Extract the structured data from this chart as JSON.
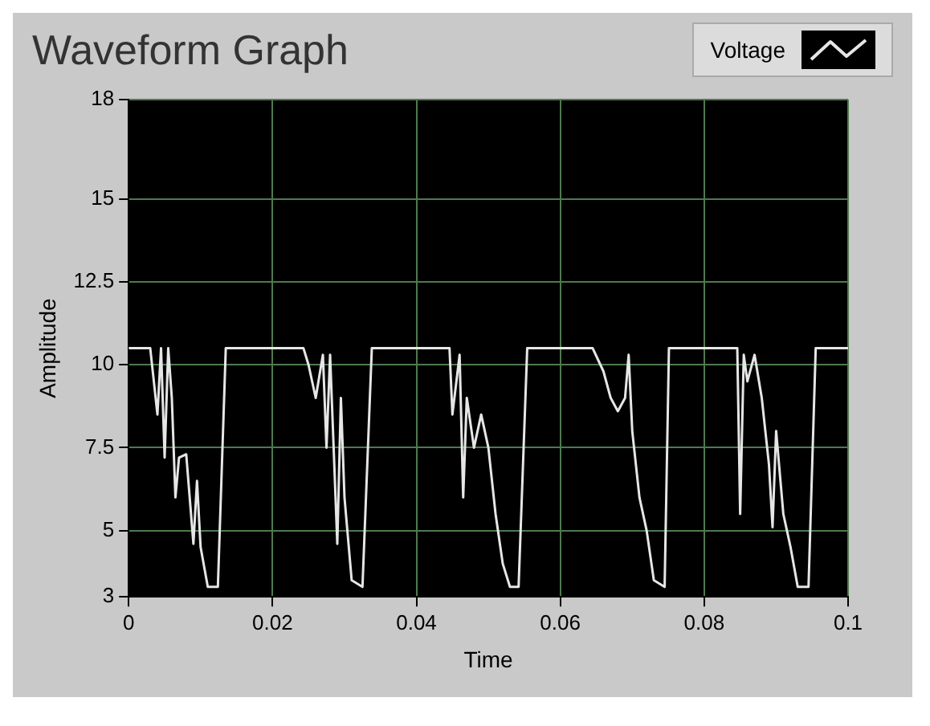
{
  "chart_data": {
    "type": "line",
    "title": "Waveform Graph",
    "xlabel": "Time",
    "ylabel": "Amplitude",
    "legend": "top right",
    "grid": true,
    "marker": "none",
    "line_style": "solid",
    "xlim": [
      0,
      0.1
    ],
    "xticks": [
      0,
      0.02,
      0.04,
      0.06,
      0.08,
      0.1
    ],
    "ylim": [
      3,
      18
    ],
    "yticks": [
      3,
      5,
      7.5,
      10,
      12.5,
      15,
      18
    ],
    "series": [
      {
        "name": "Voltage",
        "color": "#e6e6e6",
        "x": [
          0,
          0.0027,
          0.003,
          0.004,
          0.0045,
          0.005,
          0.0055,
          0.006,
          0.0065,
          0.007,
          0.008,
          0.009,
          0.0095,
          0.01,
          0.011,
          0.0124,
          0.0135,
          0.0243,
          0.025,
          0.026,
          0.027,
          0.0275,
          0.028,
          0.029,
          0.0295,
          0.03,
          0.031,
          0.0325,
          0.0338,
          0.0446,
          0.045,
          0.046,
          0.0465,
          0.047,
          0.048,
          0.049,
          0.05,
          0.051,
          0.052,
          0.053,
          0.0542,
          0.0554,
          0.0645,
          0.066,
          0.067,
          0.068,
          0.069,
          0.0695,
          0.07,
          0.071,
          0.072,
          0.073,
          0.0745,
          0.0751,
          0.0846,
          0.085,
          0.0855,
          0.086,
          0.087,
          0.088,
          0.089,
          0.0895,
          0.09,
          0.091,
          0.092,
          0.093,
          0.0945,
          0.0955,
          0.1
        ],
        "values": [
          10.5,
          10.5,
          10.5,
          8.5,
          10.5,
          7.2,
          10.5,
          9,
          6,
          7.2,
          7.3,
          4.6,
          6.5,
          4.5,
          3.3,
          3.3,
          10.5,
          10.5,
          10,
          9,
          10.3,
          7.5,
          10.3,
          4.6,
          9,
          6,
          3.5,
          3.3,
          10.5,
          10.5,
          8.5,
          10.3,
          6,
          9,
          7.5,
          8.5,
          7.5,
          5.5,
          4,
          3.3,
          3.3,
          10.5,
          10.5,
          9.8,
          9,
          8.6,
          9,
          10.3,
          8,
          6,
          5,
          3.5,
          3.3,
          10.5,
          10.5,
          5.5,
          10.3,
          9.5,
          10.3,
          9,
          7,
          5.1,
          8,
          5.5,
          4.5,
          3.3,
          3.3,
          10.5,
          10.5
        ]
      }
    ]
  }
}
